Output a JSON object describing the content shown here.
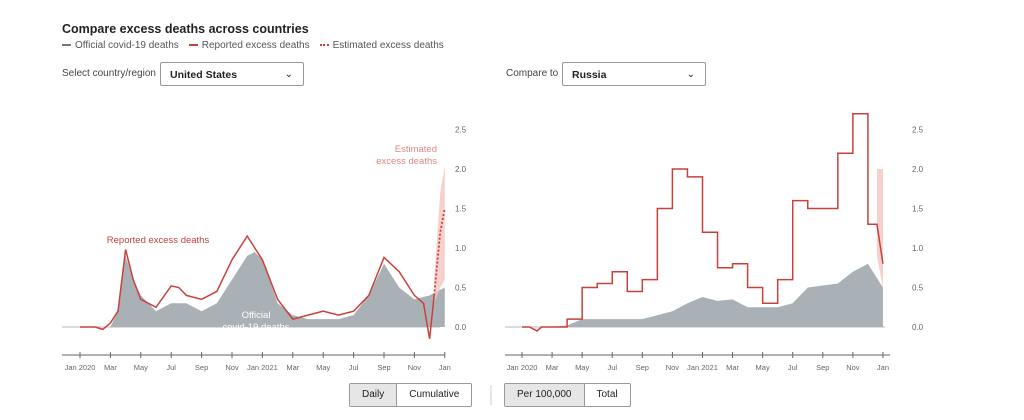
{
  "title": "Compare excess deaths across countries",
  "legend": [
    {
      "label": "Official covid-19 deaths",
      "color": "#777"
    },
    {
      "label": "Reported excess deaths",
      "color": "#c8413b"
    },
    {
      "label": "Estimated excess deaths",
      "color": "#c8413b"
    }
  ],
  "left": {
    "label": "Select country/region",
    "value": "United States"
  },
  "right": {
    "label": "Compare to",
    "value": "Russia"
  },
  "toggle1": {
    "a": "Daily",
    "b": "Cumulative"
  },
  "toggle2": {
    "a": "Per 100,000",
    "b": "Total"
  },
  "chart_data": [
    {
      "type": "area",
      "country": "United States",
      "ylim": [
        -0.2,
        2.5
      ],
      "yticks": [
        "0.0",
        "0.5",
        "1.0",
        "1.5",
        "2.0",
        "2.5"
      ],
      "xticks": [
        "Jan 2020",
        "Mar",
        "May",
        "Jul",
        "Sep",
        "Nov",
        "Jan 2021",
        "Mar",
        "May",
        "Jul",
        "Sep",
        "Nov",
        "Jan"
      ],
      "annotations": {
        "reported": "Reported excess deaths",
        "official1": "Official",
        "official2": "covid-19 deaths",
        "est1": "Estimated",
        "est2": "excess deaths"
      },
      "official": [
        [
          0,
          0
        ],
        [
          2,
          0
        ],
        [
          2.5,
          0.2
        ],
        [
          3,
          0.9
        ],
        [
          3.5,
          0.6
        ],
        [
          4,
          0.4
        ],
        [
          5,
          0.2
        ],
        [
          6,
          0.3
        ],
        [
          7,
          0.3
        ],
        [
          8,
          0.2
        ],
        [
          9,
          0.3
        ],
        [
          10,
          0.6
        ],
        [
          11,
          0.9
        ],
        [
          11.5,
          0.95
        ],
        [
          12,
          0.85
        ],
        [
          13,
          0.3
        ],
        [
          14,
          0.15
        ],
        [
          15,
          0.1
        ],
        [
          17,
          0.1
        ],
        [
          18,
          0.15
        ],
        [
          19,
          0.4
        ],
        [
          20,
          0.8
        ],
        [
          21,
          0.5
        ],
        [
          22,
          0.35
        ],
        [
          23,
          0.4
        ],
        [
          24,
          0.5
        ]
      ],
      "reported": [
        [
          0,
          0
        ],
        [
          1,
          0
        ],
        [
          1.5,
          -0.03
        ],
        [
          2,
          0.05
        ],
        [
          2.5,
          0.2
        ],
        [
          3,
          0.98
        ],
        [
          3.5,
          0.6
        ],
        [
          4,
          0.35
        ],
        [
          5,
          0.25
        ],
        [
          6,
          0.52
        ],
        [
          6.5,
          0.5
        ],
        [
          7,
          0.4
        ],
        [
          8,
          0.35
        ],
        [
          9,
          0.45
        ],
        [
          10,
          0.85
        ],
        [
          11,
          1.15
        ],
        [
          11.5,
          1.0
        ],
        [
          12,
          0.85
        ],
        [
          13,
          0.35
        ],
        [
          14,
          0.1
        ],
        [
          15,
          0.15
        ],
        [
          16,
          0.2
        ],
        [
          17,
          0.15
        ],
        [
          18,
          0.2
        ],
        [
          19,
          0.4
        ],
        [
          20,
          0.88
        ],
        [
          21,
          0.7
        ],
        [
          22,
          0.4
        ],
        [
          22.6,
          0.3
        ],
        [
          23,
          -0.15
        ],
        [
          23.3,
          0.4
        ]
      ],
      "estimated": [
        [
          23.3,
          0.4
        ],
        [
          23.7,
          1.2
        ],
        [
          24,
          1.5
        ]
      ],
      "estimated_band": [
        [
          23.3,
          0.3,
          0.6
        ],
        [
          23.7,
          0.5,
          1.7
        ],
        [
          24,
          0.6,
          2.05
        ]
      ]
    },
    {
      "type": "area",
      "country": "Russia",
      "ylim": [
        -0.2,
        2.5
      ],
      "yticks": [
        "0.0",
        "0.5",
        "1.0",
        "1.5",
        "2.0",
        "2.5"
      ],
      "xticks": [
        "Jan 2020",
        "Mar",
        "May",
        "Jul",
        "Sep",
        "Nov",
        "Jan 2021",
        "Mar",
        "May",
        "Jul",
        "Sep",
        "Nov",
        "Jan"
      ],
      "official": [
        [
          0,
          0
        ],
        [
          2,
          0
        ],
        [
          3,
          0.02
        ],
        [
          4,
          0.1
        ],
        [
          6,
          0.1
        ],
        [
          8,
          0.1
        ],
        [
          10,
          0.2
        ],
        [
          11,
          0.3
        ],
        [
          12,
          0.38
        ],
        [
          13,
          0.33
        ],
        [
          14,
          0.35
        ],
        [
          15,
          0.25
        ],
        [
          17,
          0.25
        ],
        [
          18,
          0.3
        ],
        [
          19,
          0.5
        ],
        [
          21,
          0.55
        ],
        [
          22,
          0.7
        ],
        [
          23,
          0.8
        ],
        [
          24,
          0.5
        ]
      ],
      "reported": [
        [
          0,
          0
        ],
        [
          0.5,
          0
        ],
        [
          1,
          -0.05
        ],
        [
          1.3,
          0
        ],
        [
          3,
          0
        ],
        [
          3,
          0.1
        ],
        [
          4,
          0.1
        ],
        [
          4,
          0.5
        ],
        [
          5,
          0.5
        ],
        [
          5,
          0.55
        ],
        [
          6,
          0.55
        ],
        [
          6,
          0.7
        ],
        [
          7,
          0.7
        ],
        [
          7,
          0.45
        ],
        [
          8,
          0.45
        ],
        [
          8,
          0.6
        ],
        [
          9,
          0.6
        ],
        [
          9,
          1.5
        ],
        [
          10,
          1.5
        ],
        [
          10,
          2.0
        ],
        [
          11,
          2.0
        ],
        [
          11,
          1.9
        ],
        [
          12,
          1.9
        ],
        [
          12,
          1.2
        ],
        [
          13,
          1.2
        ],
        [
          13,
          0.75
        ],
        [
          14,
          0.75
        ],
        [
          14,
          0.8
        ],
        [
          15,
          0.8
        ],
        [
          15,
          0.5
        ],
        [
          16,
          0.5
        ],
        [
          16,
          0.3
        ],
        [
          17,
          0.3
        ],
        [
          17,
          0.6
        ],
        [
          18,
          0.6
        ],
        [
          18,
          1.6
        ],
        [
          19,
          1.6
        ],
        [
          19,
          1.5
        ],
        [
          20,
          1.5
        ],
        [
          20,
          1.5
        ],
        [
          21,
          1.5
        ],
        [
          21,
          2.2
        ],
        [
          22,
          2.2
        ],
        [
          22,
          2.7
        ],
        [
          23,
          2.7
        ],
        [
          23,
          1.3
        ],
        [
          23.6,
          1.3
        ],
        [
          24,
          0.8
        ]
      ],
      "estimated_band": [
        [
          23.6,
          0.9,
          2.0
        ],
        [
          24,
          0.5,
          2.0
        ]
      ]
    }
  ]
}
